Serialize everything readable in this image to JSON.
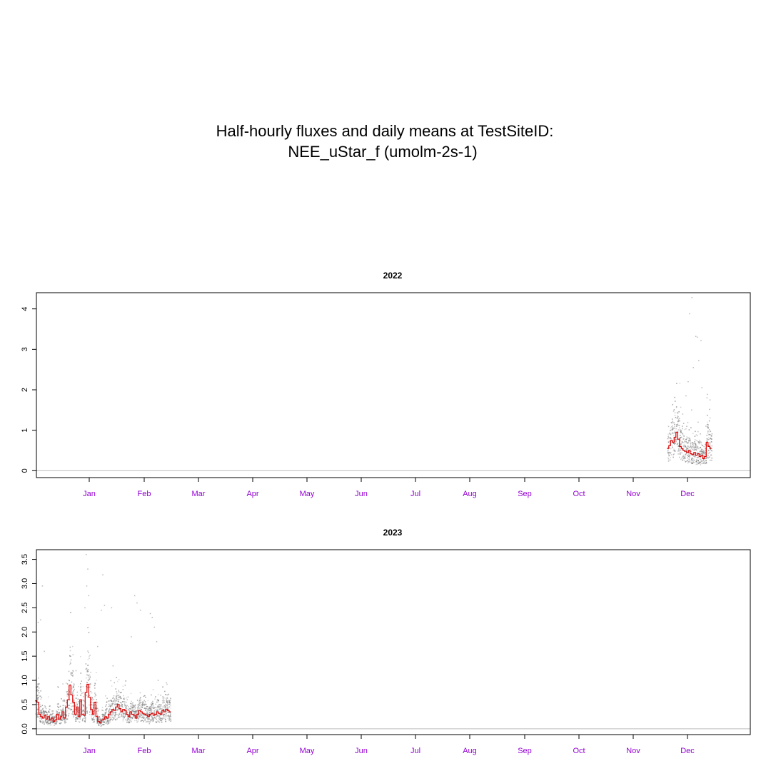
{
  "title_line1": "Half-hourly fluxes and daily means at TestSiteID:",
  "title_line2": "NEE_uStar_f (umolm-2s-1)",
  "colors": {
    "points": "#7f7f7f",
    "mean_line": "#e00000",
    "zero_line": "#bebebe",
    "month_labels": "#9400d3",
    "frame": "#000000"
  },
  "chart_data": [
    {
      "type": "scatter",
      "title": "2022",
      "months": [
        "Jan",
        "Feb",
        "Mar",
        "Apr",
        "May",
        "Jun",
        "Jul",
        "Aug",
        "Sep",
        "Oct",
        "Nov",
        "Dec"
      ],
      "ylim": [
        -0.17,
        4.4
      ],
      "yticks": [
        0,
        1,
        2,
        3,
        4
      ],
      "grid": false,
      "zero_line": true,
      "half_hourly_span": [
        339,
        363
      ],
      "series": [
        {
          "name": "",
          "kind": "daily_mean_step",
          "x": [
            339,
            340,
            341,
            342,
            343,
            344,
            345,
            346,
            347,
            348,
            349,
            350,
            351,
            352,
            353,
            354,
            355,
            356,
            357,
            358,
            359,
            360,
            361,
            362,
            363
          ],
          "y": [
            0.55,
            0.62,
            0.75,
            0.7,
            0.82,
            0.95,
            0.78,
            0.6,
            0.55,
            0.5,
            0.48,
            0.45,
            0.5,
            0.42,
            0.4,
            0.45,
            0.38,
            0.42,
            0.35,
            0.38,
            0.3,
            0.35,
            0.7,
            0.6,
            0.55
          ]
        }
      ],
      "outliers": [
        [
          352,
          4.28
        ],
        [
          351,
          3.88
        ],
        [
          354,
          3.32
        ],
        [
          355,
          3.3
        ],
        [
          357,
          3.22
        ],
        [
          356,
          2.72
        ],
        [
          353,
          2.55
        ],
        [
          358,
          2.05
        ],
        [
          349,
          1.85
        ],
        [
          350,
          2.2
        ],
        [
          361,
          1.8
        ],
        [
          362,
          1.75
        ],
        [
          347,
          1.4
        ],
        [
          360,
          1.1
        ],
        [
          352,
          1.5
        ],
        [
          356,
          1.2
        ],
        [
          344,
          1.15
        ]
      ]
    },
    {
      "type": "scatter",
      "title": "2023",
      "months": [
        "Jan",
        "Feb",
        "Mar",
        "Apr",
        "May",
        "Jun",
        "Jul",
        "Aug",
        "Sep",
        "Oct",
        "Nov",
        "Dec"
      ],
      "ylim": [
        -0.12,
        3.7
      ],
      "yticks": [
        0.0,
        0.5,
        1.0,
        1.5,
        2.0,
        2.5,
        3.0,
        3.5
      ],
      "grid": false,
      "zero_line": true,
      "half_hourly_span": [
        -15,
        60
      ],
      "series": [
        {
          "name": "",
          "kind": "daily_mean_step",
          "x": [
            -15,
            -14,
            -13,
            -12,
            -11,
            -10,
            -9,
            -8,
            -7,
            -6,
            -5,
            -4,
            -3,
            -2,
            -1,
            0,
            1,
            2,
            3,
            4,
            5,
            6,
            7,
            8,
            9,
            10,
            11,
            12,
            13,
            14,
            15,
            16,
            17,
            18,
            19,
            20,
            21,
            22,
            23,
            24,
            25,
            26,
            27,
            28,
            29,
            30,
            31,
            32,
            33,
            34,
            35,
            36,
            37,
            38,
            39,
            40,
            41,
            42,
            43,
            44,
            45,
            46,
            47,
            48,
            49,
            50,
            51,
            52,
            53,
            54,
            55,
            56,
            57,
            58,
            59,
            60
          ],
          "y": [
            0.58,
            0.55,
            0.3,
            0.25,
            0.22,
            0.28,
            0.2,
            0.25,
            0.18,
            0.22,
            0.15,
            0.18,
            0.3,
            0.2,
            0.25,
            0.35,
            0.22,
            0.45,
            0.6,
            0.9,
            0.7,
            0.55,
            0.3,
            0.45,
            0.25,
            0.6,
            0.3,
            0.28,
            0.75,
            0.92,
            0.65,
            0.4,
            0.3,
            0.55,
            0.25,
            0.15,
            0.12,
            0.18,
            0.2,
            0.25,
            0.22,
            0.3,
            0.35,
            0.4,
            0.38,
            0.45,
            0.5,
            0.42,
            0.35,
            0.4,
            0.38,
            0.3,
            0.25,
            0.35,
            0.3,
            0.28,
            0.22,
            0.3,
            0.38,
            0.35,
            0.32,
            0.3,
            0.28,
            0.25,
            0.3,
            0.32,
            0.28,
            0.3,
            0.35,
            0.32,
            0.3,
            0.38,
            0.35,
            0.4,
            0.38,
            0.35
          ]
        }
      ],
      "outliers": [
        [
          -12,
          2.95
        ],
        [
          -13,
          2.25
        ],
        [
          -14,
          2.2
        ],
        [
          -11,
          1.6
        ],
        [
          13,
          3.6
        ],
        [
          14,
          3.3
        ],
        [
          13,
          2.95
        ],
        [
          14,
          2.75
        ],
        [
          12,
          2.5
        ],
        [
          22,
          3.18
        ],
        [
          23,
          2.55
        ],
        [
          21,
          2.45
        ],
        [
          27,
          2.5
        ],
        [
          40,
          2.75
        ],
        [
          41,
          2.6
        ],
        [
          43,
          2.45
        ],
        [
          38,
          1.9
        ],
        [
          49,
          2.38
        ],
        [
          50,
          2.3
        ],
        [
          51,
          2.1
        ],
        [
          52,
          1.8
        ],
        [
          19,
          1.7
        ],
        [
          7,
          1.2
        ],
        [
          28,
          1.3
        ],
        [
          53,
          1.0
        ],
        [
          58,
          0.95
        ]
      ]
    }
  ]
}
